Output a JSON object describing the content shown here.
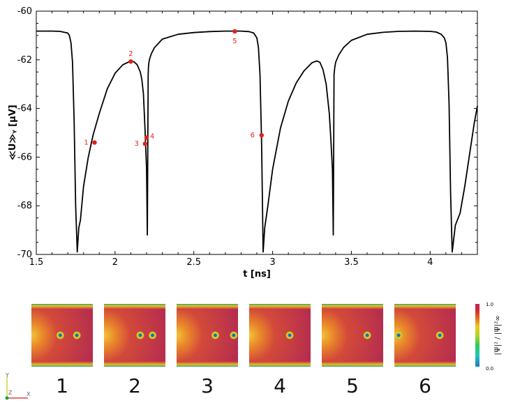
{
  "chart_data": {
    "type": "line",
    "title": "",
    "xlabel": "t [ns]",
    "ylabel": "≪U≫ᵧ [μV]",
    "xlim": [
      1.5,
      4.3
    ],
    "ylim": [
      -70,
      -60
    ],
    "xticks": [
      1.5,
      2,
      2.5,
      3,
      3.5,
      4
    ],
    "xtick_labels": [
      "1.5",
      "2",
      "2.5",
      "3",
      "3.5",
      "4"
    ],
    "yticks": [
      -60,
      -62,
      -64,
      -66,
      -68,
      -70
    ],
    "ytick_labels": [
      "-60",
      "-62",
      "-64",
      "-66",
      "-68",
      "-70"
    ],
    "series": [
      {
        "name": "U",
        "x": [
          1.5,
          1.55,
          1.6,
          1.65,
          1.7,
          1.71,
          1.72,
          1.73,
          1.74,
          1.75,
          1.76,
          1.77,
          1.78,
          1.8,
          1.83,
          1.86,
          1.9,
          1.95,
          2.0,
          2.05,
          2.1,
          2.12,
          2.14,
          2.16,
          2.17,
          2.18,
          2.19,
          2.2,
          2.205,
          2.21,
          2.212,
          2.215,
          2.22,
          2.23,
          2.25,
          2.3,
          2.4,
          2.5,
          2.6,
          2.7,
          2.8,
          2.85,
          2.88,
          2.9,
          2.91,
          2.92,
          2.93,
          2.94,
          2.95,
          2.97,
          3.0,
          3.05,
          3.1,
          3.15,
          3.2,
          3.25,
          3.28,
          3.3,
          3.32,
          3.34,
          3.36,
          3.37,
          3.38,
          3.385,
          3.39,
          3.395,
          3.4,
          3.42,
          3.45,
          3.5,
          3.6,
          3.7,
          3.8,
          3.9,
          4.0,
          4.04,
          4.07,
          4.09,
          4.1,
          4.11,
          4.12,
          4.13,
          4.14,
          4.16,
          4.19,
          4.22,
          4.25,
          4.28,
          4.3
        ],
        "y": [
          -60.82,
          -60.82,
          -60.82,
          -60.83,
          -60.9,
          -61.0,
          -61.3,
          -62.1,
          -64.5,
          -68.0,
          -69.9,
          -68.9,
          -68.6,
          -67.2,
          -66.0,
          -65.1,
          -64.2,
          -63.2,
          -62.55,
          -62.2,
          -62.05,
          -62.08,
          -62.2,
          -62.5,
          -62.8,
          -63.4,
          -64.8,
          -66.5,
          -69.2,
          -62.6,
          -62.3,
          -62.1,
          -61.95,
          -61.75,
          -61.5,
          -61.15,
          -60.95,
          -60.88,
          -60.84,
          -60.82,
          -60.82,
          -60.84,
          -60.9,
          -61.1,
          -61.5,
          -62.6,
          -65.4,
          -69.9,
          -68.9,
          -68.0,
          -66.5,
          -64.8,
          -63.7,
          -62.95,
          -62.45,
          -62.12,
          -62.05,
          -62.1,
          -62.4,
          -63.0,
          -64.2,
          -65.3,
          -66.5,
          -69.2,
          -62.6,
          -62.3,
          -62.1,
          -61.8,
          -61.5,
          -61.2,
          -60.95,
          -60.87,
          -60.83,
          -60.82,
          -60.83,
          -60.86,
          -60.95,
          -61.1,
          -61.3,
          -61.9,
          -63.8,
          -67.5,
          -69.9,
          -68.8,
          -68.3,
          -67.2,
          -65.9,
          -64.6,
          -63.9
        ]
      }
    ],
    "markers": [
      {
        "label": "1",
        "t": 1.87,
        "u": -65.4
      },
      {
        "label": "2",
        "t": 2.1,
        "u": -62.07
      },
      {
        "label": "3",
        "t": 2.19,
        "u": -65.45
      },
      {
        "label": "4",
        "t": 2.2,
        "u": -65.2
      },
      {
        "label": "5",
        "t": 2.76,
        "u": -60.83
      },
      {
        "label": "6",
        "t": 2.93,
        "u": -65.1
      }
    ]
  },
  "panels": {
    "labels": [
      "1",
      "2",
      "3",
      "4",
      "5",
      "6"
    ],
    "vortex_positions": [
      [
        0.47,
        0.74
      ],
      [
        0.59,
        0.79
      ],
      [
        0.63,
        0.93
      ],
      [
        0.66
      ],
      [
        0.74
      ],
      [
        0.07,
        0.74
      ]
    ]
  },
  "colorbar": {
    "max_label": "1.0",
    "min_label": "0.0",
    "title": "|Ψ|² / |Ψ|²∞",
    "colors": [
      "#1f78c8",
      "#21c7c0",
      "#2ec85a",
      "#b8d21e",
      "#f0c81e",
      "#e8661e",
      "#d02a2a",
      "#b8246a"
    ]
  },
  "triad": {
    "y": "Y",
    "z": "Z",
    "x": "X"
  }
}
